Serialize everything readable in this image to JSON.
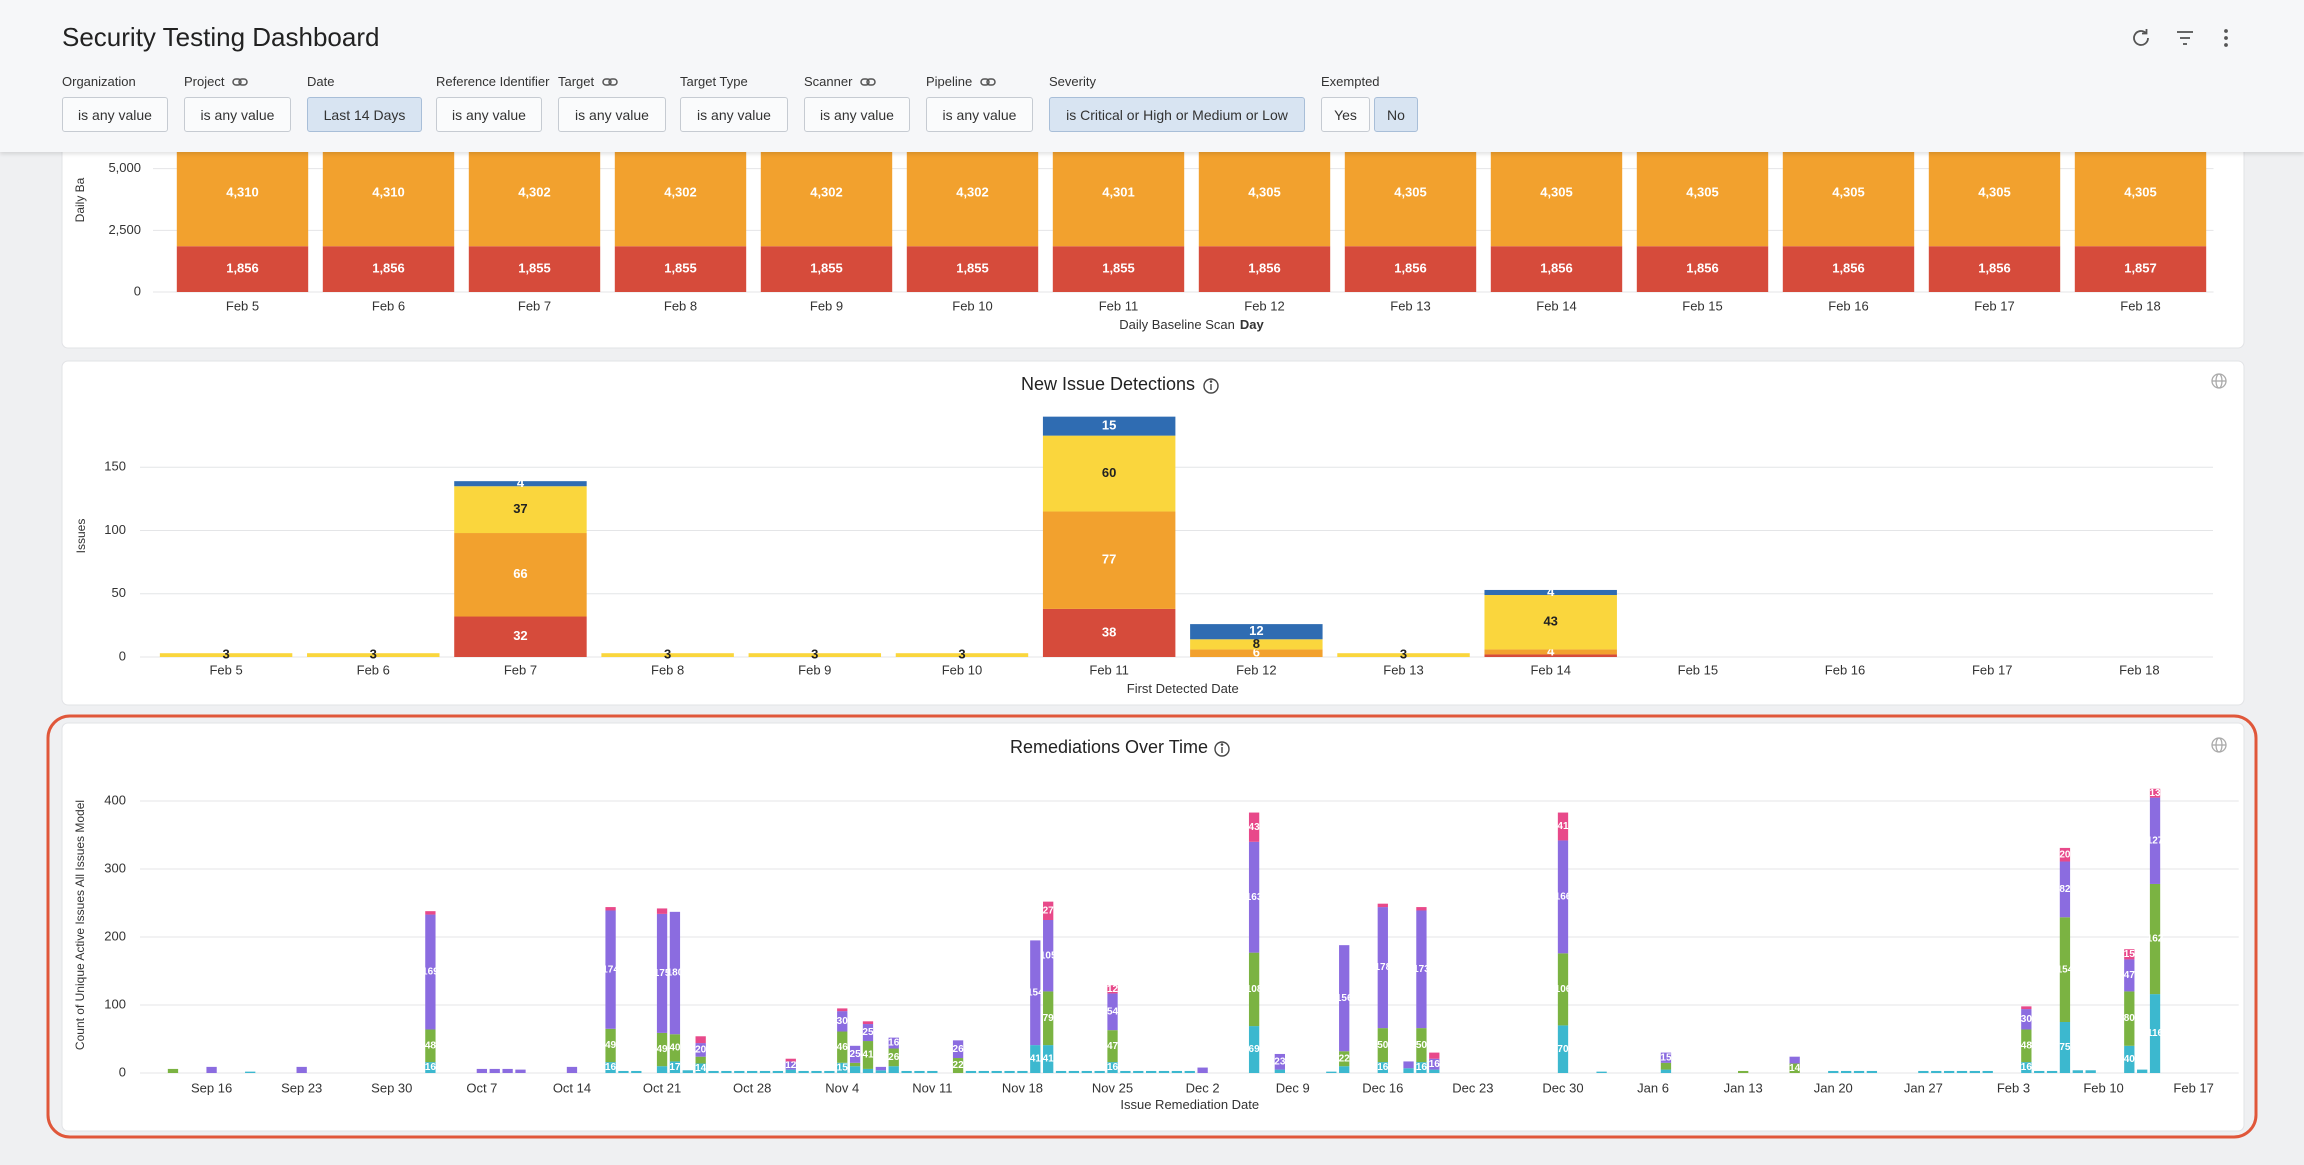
{
  "header": {
    "title": "Security Testing Dashboard",
    "filters": [
      {
        "label": "Organization",
        "value": "is any value",
        "linked": false,
        "selected": false
      },
      {
        "label": "Project",
        "value": "is any value",
        "linked": true,
        "selected": false
      },
      {
        "label": "Date",
        "value": "Last 14 Days",
        "linked": false,
        "selected": true
      },
      {
        "label": "Reference Identifier",
        "value": "is any value",
        "linked": false,
        "selected": false
      },
      {
        "label": "Target",
        "value": "is any value",
        "linked": true,
        "selected": false
      },
      {
        "label": "Target Type",
        "value": "is any value",
        "linked": false,
        "selected": false
      },
      {
        "label": "Scanner",
        "value": "is any value",
        "linked": true,
        "selected": false
      },
      {
        "label": "Pipeline",
        "value": "is any value",
        "linked": true,
        "selected": false
      },
      {
        "label": "Severity",
        "value": "is Critical or High or Medium or Low",
        "linked": false,
        "selected": true
      }
    ],
    "exempted": {
      "label": "Exempted",
      "options": [
        "Yes",
        "No"
      ],
      "selected": 1
    }
  },
  "chart_data": [
    {
      "type": "bar",
      "stacked": true,
      "y_label": "Daily Ba",
      "x_label": "Daily Baseline Scan",
      "x_label_emphasis": "Day",
      "categories": [
        "Feb 5",
        "Feb 6",
        "Feb 7",
        "Feb 8",
        "Feb 9",
        "Feb 10",
        "Feb 11",
        "Feb 12",
        "Feb 13",
        "Feb 14",
        "Feb 15",
        "Feb 16",
        "Feb 17",
        "Feb 18"
      ],
      "series": [
        {
          "color": "#d64b3b",
          "values": [
            1856,
            1856,
            1855,
            1855,
            1855,
            1855,
            1855,
            1856,
            1856,
            1856,
            1856,
            1856,
            1856,
            1857
          ],
          "value_labels": [
            "1,856",
            "1,856",
            "1,855",
            "1,855",
            "1,855",
            "1,855",
            "1,855",
            "1,856",
            "1,856",
            "1,856",
            "1,856",
            "1,856",
            "1,856",
            "1,857"
          ]
        },
        {
          "color": "#f2a12e",
          "values": [
            4310,
            4310,
            4302,
            4302,
            4302,
            4302,
            4301,
            4305,
            4305,
            4305,
            4305,
            4305,
            4305,
            4305
          ],
          "value_labels": [
            "4,310",
            "4,310",
            "4,302",
            "4,302",
            "4,302",
            "4,302",
            "4,301",
            "4,305",
            "4,305",
            "4,305",
            "4,305",
            "4,305",
            "4,305",
            "4,305"
          ]
        }
      ],
      "ylim": [
        0,
        7500
      ],
      "yticks": [
        0,
        {
          "value": 2500,
          "label": "2,500"
        },
        {
          "value": 5000,
          "label": "5,000"
        }
      ],
      "grid": true
    },
    {
      "type": "bar",
      "stacked": true,
      "title": "New Issue Detections",
      "y_label": "Issues",
      "x_label": "First Detected Date",
      "categories": [
        "Feb 5",
        "Feb 6",
        "Feb 7",
        "Feb 8",
        "Feb 9",
        "Feb 10",
        "Feb 11",
        "Feb 12",
        "Feb 13",
        "Feb 14",
        "Feb 15",
        "Feb 16",
        "Feb 17",
        "Feb 18"
      ],
      "series": [
        {
          "color": "#d64b3b",
          "values": [
            null,
            null,
            32,
            null,
            null,
            null,
            38,
            null,
            null,
            2,
            null,
            null,
            null,
            null
          ]
        },
        {
          "color": "#f2a12e",
          "values": [
            null,
            null,
            66,
            null,
            null,
            null,
            77,
            6,
            null,
            4,
            null,
            null,
            null,
            null
          ]
        },
        {
          "color": "#fad63d",
          "label_color": "#222",
          "values": [
            3,
            3,
            37,
            3,
            3,
            3,
            60,
            8,
            3,
            43,
            null,
            null,
            null,
            null
          ]
        },
        {
          "color": "#2f6cb2",
          "values": [
            null,
            null,
            4,
            null,
            null,
            null,
            15,
            12,
            null,
            4,
            null,
            null,
            null,
            null
          ]
        }
      ],
      "ylim": [
        0,
        200
      ],
      "yticks": [
        0,
        50,
        100,
        150
      ],
      "grid": true
    },
    {
      "type": "bar",
      "stacked": true,
      "title": "Remediations Over Time",
      "y_label": "Count of Unique Active Issues All Issues Model",
      "x_label": "Issue Remediation Date",
      "categories": [
        null,
        null,
        null,
        null,
        null,
        "Sep 16",
        null,
        null,
        null,
        null,
        null,
        null,
        "Sep 23",
        null,
        null,
        null,
        null,
        null,
        null,
        "Sep 30",
        null,
        null,
        null,
        null,
        null,
        null,
        "Oct 7",
        null,
        null,
        null,
        null,
        null,
        null,
        "Oct 14",
        null,
        null,
        null,
        null,
        null,
        null,
        "Oct 21",
        null,
        null,
        null,
        null,
        null,
        null,
        "Oct 28",
        null,
        null,
        null,
        null,
        null,
        null,
        "Nov 4",
        null,
        null,
        null,
        null,
        null,
        null,
        "Nov 11",
        null,
        null,
        null,
        null,
        null,
        null,
        "Nov 18",
        null,
        null,
        null,
        null,
        null,
        null,
        "Nov 25",
        null,
        null,
        null,
        null,
        null,
        null,
        "Dec 2",
        null,
        null,
        null,
        null,
        null,
        null,
        "Dec 9",
        null,
        null,
        null,
        null,
        null,
        null,
        "Dec 16",
        null,
        null,
        null,
        null,
        null,
        null,
        "Dec 23",
        null,
        null,
        null,
        null,
        null,
        null,
        "Dec 30",
        null,
        null,
        null,
        null,
        null,
        null,
        "Jan 6",
        null,
        null,
        null,
        null,
        null,
        null,
        "Jan 13",
        null,
        null,
        null,
        null,
        null,
        null,
        "Jan 20",
        null,
        null,
        null,
        null,
        null,
        null,
        "Jan 27",
        null,
        null,
        null,
        null,
        null,
        null,
        "Feb 3",
        null,
        null,
        null,
        null,
        null,
        null,
        "Feb 10",
        null,
        null,
        null,
        null,
        null,
        null,
        "Feb 17",
        null,
        null,
        null
      ],
      "series": [
        {
          "color": "#3cb8cf",
          "values": [
            null,
            null,
            null,
            null,
            null,
            null,
            null,
            null,
            2,
            null,
            null,
            null,
            null,
            null,
            null,
            null,
            null,
            null,
            null,
            null,
            null,
            null,
            16,
            null,
            null,
            null,
            null,
            null,
            null,
            null,
            null,
            null,
            null,
            null,
            null,
            null,
            16,
            3,
            3,
            null,
            10,
            17,
            4,
            14,
            3,
            3,
            3,
            3,
            3,
            3,
            5,
            3,
            3,
            3,
            15,
            10,
            6,
            4,
            10,
            3,
            3,
            3,
            null,
            null,
            3,
            3,
            3,
            3,
            3,
            41,
            41,
            3,
            3,
            3,
            3,
            16,
            3,
            3,
            3,
            3,
            3,
            3,
            null,
            null,
            null,
            null,
            69,
            null,
            5,
            null,
            null,
            null,
            2,
            10,
            null,
            null,
            16,
            null,
            7,
            16,
            5,
            null,
            null,
            null,
            null,
            null,
            null,
            null,
            null,
            null,
            70,
            null,
            null,
            2,
            null,
            null,
            null,
            null,
            5,
            null,
            null,
            null,
            null,
            null,
            null,
            null,
            null,
            null,
            null,
            null,
            null,
            3,
            3,
            3,
            3,
            null,
            null,
            null,
            3,
            3,
            3,
            3,
            3,
            3,
            null,
            null,
            16,
            3,
            3,
            75,
            4,
            4,
            null,
            null,
            40,
            5,
            116,
            null,
            null,
            null,
            null,
            null,
            null
          ]
        },
        {
          "color": "#7bb342",
          "values": [
            null,
            null,
            6,
            null,
            null,
            null,
            null,
            null,
            null,
            null,
            null,
            null,
            null,
            null,
            null,
            null,
            null,
            null,
            null,
            null,
            null,
            null,
            48,
            null,
            null,
            null,
            null,
            null,
            null,
            null,
            null,
            null,
            null,
            null,
            null,
            null,
            49,
            null,
            null,
            null,
            49,
            40,
            null,
            10,
            null,
            null,
            null,
            null,
            null,
            null,
            null,
            null,
            null,
            null,
            46,
            5,
            41,
            null,
            26,
            null,
            null,
            null,
            null,
            22,
            null,
            null,
            null,
            null,
            null,
            null,
            79,
            null,
            null,
            null,
            null,
            47,
            null,
            null,
            null,
            null,
            null,
            null,
            null,
            null,
            null,
            null,
            108,
            null,
            null,
            null,
            null,
            null,
            null,
            22,
            null,
            null,
            50,
            null,
            null,
            50,
            null,
            null,
            null,
            null,
            null,
            null,
            null,
            null,
            null,
            null,
            106,
            null,
            null,
            null,
            null,
            null,
            null,
            null,
            10,
            null,
            null,
            null,
            null,
            null,
            3,
            null,
            null,
            null,
            14,
            null,
            null,
            null,
            null,
            null,
            null,
            null,
            null,
            null,
            null,
            null,
            null,
            null,
            null,
            null,
            null,
            null,
            48,
            null,
            null,
            154,
            null,
            null,
            null,
            null,
            80,
            null,
            162,
            null,
            null,
            null,
            null,
            null,
            null
          ]
        },
        {
          "color": "#8b6ce0",
          "values": [
            null,
            null,
            null,
            null,
            null,
            9,
            null,
            null,
            null,
            null,
            null,
            null,
            9,
            null,
            null,
            null,
            null,
            null,
            null,
            null,
            null,
            null,
            169,
            null,
            null,
            null,
            6,
            6,
            6,
            5,
            null,
            null,
            null,
            9,
            null,
            null,
            174,
            null,
            null,
            null,
            175,
            180,
            null,
            20,
            null,
            null,
            null,
            null,
            null,
            null,
            12,
            null,
            null,
            null,
            30,
            25,
            25,
            5,
            16,
            null,
            null,
            null,
            null,
            26,
            null,
            null,
            null,
            null,
            null,
            154,
            105,
            null,
            null,
            null,
            null,
            54,
            null,
            null,
            null,
            null,
            null,
            null,
            8,
            null,
            null,
            null,
            163,
            null,
            23,
            null,
            null,
            null,
            null,
            156,
            null,
            null,
            178,
            null,
            10,
            173,
            16,
            null,
            null,
            null,
            null,
            null,
            null,
            null,
            null,
            null,
            166,
            null,
            null,
            null,
            null,
            null,
            null,
            null,
            15,
            null,
            null,
            null,
            null,
            null,
            null,
            null,
            null,
            null,
            10,
            null,
            null,
            null,
            null,
            null,
            null,
            null,
            null,
            null,
            null,
            null,
            null,
            null,
            null,
            null,
            null,
            null,
            30,
            null,
            null,
            82,
            null,
            null,
            null,
            null,
            47,
            null,
            127,
            null,
            null,
            null,
            null,
            null,
            null
          ]
        },
        {
          "color": "#e8498a",
          "values": [
            null,
            null,
            null,
            null,
            null,
            null,
            null,
            null,
            null,
            null,
            null,
            null,
            null,
            null,
            null,
            null,
            null,
            null,
            null,
            null,
            null,
            null,
            5,
            null,
            null,
            null,
            null,
            null,
            null,
            null,
            null,
            null,
            null,
            null,
            null,
            null,
            5,
            null,
            null,
            null,
            8,
            null,
            null,
            10,
            null,
            null,
            null,
            null,
            null,
            null,
            4,
            null,
            null,
            null,
            4,
            null,
            4,
            null,
            null,
            null,
            null,
            null,
            null,
            null,
            null,
            null,
            null,
            null,
            null,
            null,
            27,
            null,
            null,
            null,
            null,
            12,
            null,
            null,
            null,
            null,
            null,
            null,
            null,
            null,
            null,
            null,
            43,
            null,
            null,
            null,
            null,
            null,
            null,
            null,
            null,
            null,
            5,
            null,
            null,
            5,
            9,
            null,
            null,
            null,
            null,
            null,
            null,
            null,
            null,
            null,
            41,
            null,
            null,
            null,
            null,
            null,
            null,
            null,
            null,
            null,
            null,
            null,
            null,
            null,
            null,
            null,
            null,
            null,
            null,
            null,
            null,
            null,
            null,
            null,
            null,
            null,
            null,
            null,
            null,
            null,
            null,
            null,
            null,
            null,
            null,
            null,
            4,
            null,
            null,
            20,
            null,
            null,
            null,
            null,
            15,
            null,
            13,
            null,
            null,
            null,
            null,
            null,
            null
          ]
        }
      ],
      "ylim": [
        0,
        430
      ],
      "yticks": [
        0,
        100,
        200,
        300,
        400
      ],
      "grid": true
    }
  ]
}
